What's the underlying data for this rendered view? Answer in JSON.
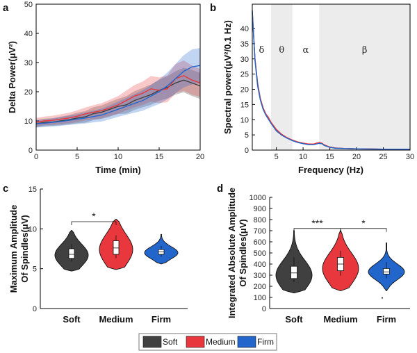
{
  "colors": {
    "soft": "#404040",
    "medium": "#e8383d",
    "firm": "#2266cc"
  },
  "legend": {
    "items": [
      "Soft",
      "Medium",
      "Firm"
    ]
  },
  "panels": {
    "a": {
      "label": "a"
    },
    "b": {
      "label": "b"
    },
    "c": {
      "label": "c"
    },
    "d": {
      "label": "d"
    }
  },
  "chart_data": [
    {
      "id": "a",
      "type": "line",
      "title": "",
      "xlabel": "Time (min)",
      "ylabel": "Delta Power(μV²)",
      "xlim": [
        0,
        20
      ],
      "ylim": [
        0,
        50
      ],
      "xticks": [
        "0",
        "5",
        "10",
        "15",
        "20"
      ],
      "yticks": [
        "0",
        "10",
        "20",
        "30",
        "40",
        "50"
      ],
      "x": [
        0,
        1,
        2,
        3,
        4,
        5,
        6,
        7,
        8,
        9,
        10,
        11,
        12,
        13,
        14,
        15,
        16,
        17,
        18,
        19,
        20
      ],
      "series": [
        {
          "name": "Soft",
          "values": [
            9,
            9.5,
            9.6,
            10,
            10.4,
            11,
            11.4,
            12.5,
            13,
            14,
            15,
            15.5,
            17,
            18,
            19,
            20.5,
            21.5,
            23,
            24,
            23,
            22
          ],
          "band": [
            1.2,
            1.3,
            1.3,
            1.5,
            1.6,
            1.8,
            2,
            2.2,
            2.3,
            2.5,
            2.6,
            3,
            3.2,
            3.3,
            3.5,
            3.6,
            3.8,
            4,
            4.2,
            4.5,
            4.5
          ]
        },
        {
          "name": "Medium",
          "values": [
            9.5,
            10,
            10.2,
            10.6,
            11,
            11.6,
            12.4,
            13,
            13.5,
            14.5,
            15.5,
            17,
            18.5,
            19.5,
            21,
            20.5,
            21,
            24.5,
            25.5,
            24,
            23
          ],
          "band": [
            1.5,
            1.5,
            1.6,
            1.7,
            1.8,
            2,
            2.2,
            2.4,
            2.6,
            2.8,
            3,
            3.4,
            3.8,
            4,
            4.4,
            4.4,
            4.6,
            5,
            5.2,
            5,
            4.8
          ]
        },
        {
          "name": "Firm",
          "values": [
            9,
            9.2,
            9.5,
            9.8,
            10.2,
            10.6,
            11,
            11.5,
            12,
            13,
            14,
            15,
            16,
            17,
            18.5,
            20,
            22,
            24.5,
            27,
            28.5,
            29
          ],
          "band": [
            1.3,
            1.3,
            1.4,
            1.5,
            1.6,
            1.7,
            1.9,
            2,
            2.2,
            2.4,
            2.6,
            2.9,
            3.2,
            3.5,
            3.8,
            4.2,
            4.6,
            5,
            5.5,
            6,
            6
          ]
        }
      ]
    },
    {
      "id": "b",
      "type": "line",
      "title": "",
      "xlabel": "Frequency (Hz)",
      "ylabel": "Spectral power(μV²/0.1 Hz)",
      "xlim": [
        0.5,
        30
      ],
      "ylim": [
        0,
        48
      ],
      "xticks": [
        "5",
        "10",
        "15",
        "20",
        "25",
        "30"
      ],
      "yticks": [
        "0",
        "5",
        "10",
        "15",
        "20",
        "25",
        "30",
        "35",
        "40"
      ],
      "bands": [
        {
          "label": "δ",
          "range": [
            0.5,
            4
          ],
          "shaded": false
        },
        {
          "label": "θ",
          "range": [
            4,
            8
          ],
          "shaded": true
        },
        {
          "label": "α",
          "range": [
            8,
            13
          ],
          "shaded": false
        },
        {
          "label": "β",
          "range": [
            13,
            30
          ],
          "shaded": true
        }
      ],
      "x": [
        0.5,
        1,
        1.5,
        2,
        2.5,
        3,
        3.5,
        4,
        5,
        6,
        7,
        8,
        9,
        10,
        11,
        12,
        12.5,
        13,
        13.5,
        14,
        15,
        16,
        18,
        20,
        25,
        30
      ],
      "series": [
        {
          "name": "Soft",
          "values": [
            46,
            30,
            22,
            17,
            14,
            12,
            10.5,
            9,
            6.5,
            5,
            4,
            3.2,
            2.6,
            2.2,
            1.9,
            1.9,
            2.1,
            2.3,
            2.2,
            1.6,
            1,
            0.7,
            0.5,
            0.4,
            0.3,
            0.3
          ]
        },
        {
          "name": "Medium",
          "values": [
            45,
            30,
            21.5,
            17,
            14,
            12,
            10.8,
            9.2,
            6.8,
            5.2,
            4.1,
            3.3,
            2.7,
            2.3,
            2,
            2,
            2.3,
            2.5,
            2.3,
            1.7,
            1,
            0.7,
            0.5,
            0.4,
            0.3,
            0.3
          ]
        },
        {
          "name": "Firm",
          "values": [
            45.5,
            29.5,
            21,
            16.5,
            13.5,
            11.6,
            10.2,
            8.8,
            6.3,
            4.9,
            3.9,
            3.1,
            2.5,
            2.1,
            1.8,
            1.8,
            2,
            2.2,
            2.1,
            1.5,
            0.9,
            0.6,
            0.5,
            0.4,
            0.3,
            0.3
          ]
        }
      ]
    },
    {
      "id": "c",
      "type": "violin",
      "title": "",
      "xlabel": "",
      "ylabel": "Maximum Amplitude Of Spindles(μV)",
      "ylim": [
        0,
        15
      ],
      "yticks": [
        "0",
        "5",
        "10",
        "15"
      ],
      "categories": [
        "Soft",
        "Medium",
        "Firm"
      ],
      "distributions": [
        {
          "name": "Soft",
          "min": 4.7,
          "q1": 6.3,
          "median": 6.8,
          "q3": 7.5,
          "max": 9.8,
          "mode": 6.7
        },
        {
          "name": "Medium",
          "min": 4.9,
          "q1": 6.8,
          "median": 7.6,
          "q3": 8.5,
          "max": 11.2,
          "mode": 7.4
        },
        {
          "name": "Firm",
          "min": 5.6,
          "q1": 6.8,
          "median": 7.1,
          "q3": 7.4,
          "max": 9.3,
          "mode": 7.0
        }
      ],
      "significance": [
        {
          "pair": [
            "Soft",
            "Medium"
          ],
          "label": "*",
          "y": 10.9
        }
      ]
    },
    {
      "id": "d",
      "type": "violin",
      "title": "",
      "xlabel": "",
      "ylabel": "Integrated Absolute Amplitude Of Spindles(μV)",
      "ylim": [
        0,
        1000
      ],
      "yticks": [
        "0",
        "100",
        "200",
        "300",
        "400",
        "500",
        "600",
        "700",
        "800",
        "900",
        "1000"
      ],
      "categories": [
        "Soft",
        "Medium",
        "Firm"
      ],
      "distributions": [
        {
          "name": "Soft",
          "min": 140,
          "q1": 270,
          "median": 320,
          "q3": 380,
          "max": 700,
          "mode": 300
        },
        {
          "name": "Medium",
          "min": 160,
          "q1": 340,
          "median": 400,
          "q3": 460,
          "max": 700,
          "mode": 360
        },
        {
          "name": "Firm",
          "min": 160,
          "q1": 310,
          "median": 330,
          "q3": 360,
          "max": 590,
          "mode": 330
        }
      ],
      "outliers": [
        {
          "category": "Firm",
          "value": 95
        }
      ],
      "significance": [
        {
          "pair": [
            "Soft",
            "Medium"
          ],
          "label": "***",
          "y": 720
        },
        {
          "pair": [
            "Medium",
            "Firm"
          ],
          "label": "*",
          "y": 720
        }
      ]
    }
  ]
}
